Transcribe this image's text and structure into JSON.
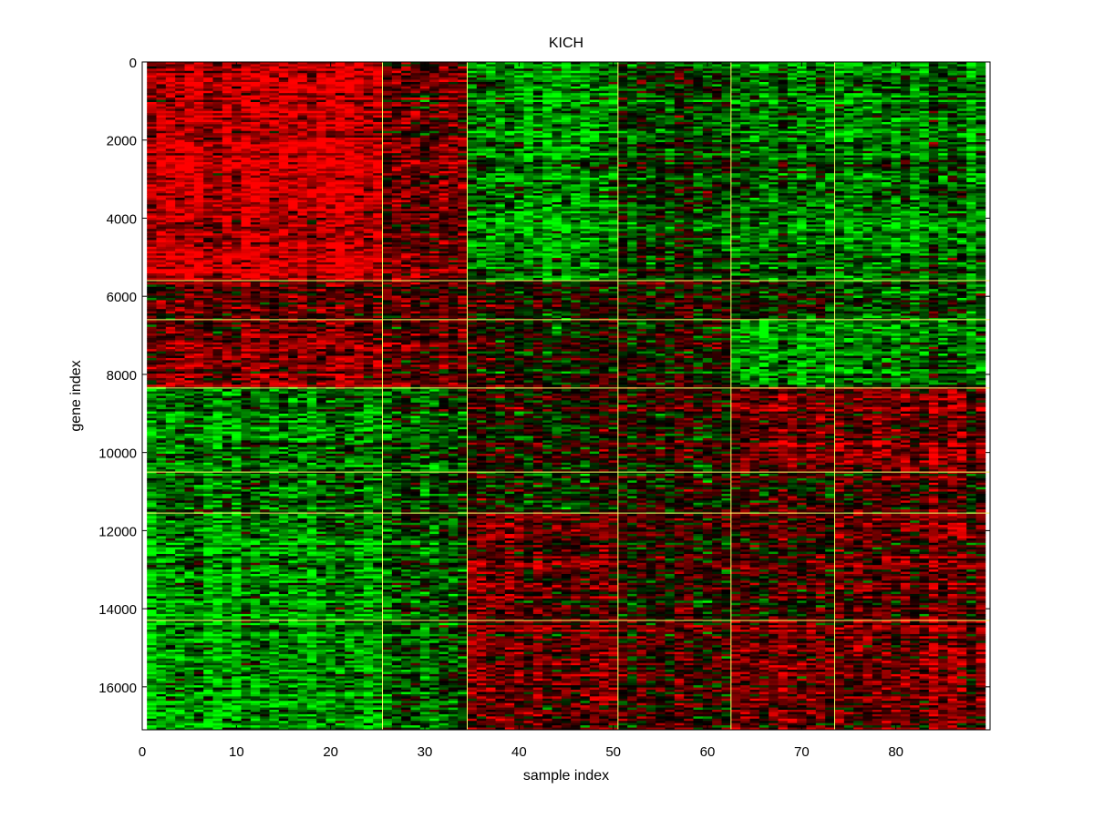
{
  "chart_data": {
    "type": "heatmap",
    "title": "KICH",
    "xlabel": "sample index",
    "ylabel": "gene index",
    "xlim": [
      0,
      90
    ],
    "ylim": [
      0,
      17100
    ],
    "y_reversed": true,
    "x_ticks": [
      0,
      10,
      20,
      30,
      40,
      50,
      60,
      70,
      80
    ],
    "y_ticks": [
      0,
      2000,
      4000,
      6000,
      8000,
      10000,
      12000,
      14000,
      16000
    ],
    "grid": false,
    "colormap": {
      "low": "#00ff00",
      "mid": "#000000",
      "high": "#ff0000"
    },
    "separator_color": "#ffff66",
    "sample_column_range": [
      0.5,
      89.5
    ],
    "sample_group_boundaries": [
      25.5,
      34.5,
      50.5,
      62.5,
      73.5
    ],
    "gene_group_boundaries": [
      5600,
      6600,
      8350,
      10500,
      11550,
      14300
    ],
    "block_tendency": {
      "description": "mean expression tendency per block (-1 = green, +1 = red), rows = gene bands, cols = sample groups",
      "gene_bands": [
        [
          0,
          5600
        ],
        [
          5600,
          6600
        ],
        [
          6600,
          8350
        ],
        [
          8350,
          10500
        ],
        [
          10500,
          11550
        ],
        [
          11550,
          14300
        ],
        [
          14300,
          17100
        ]
      ],
      "sample_groups": [
        [
          0.5,
          25.5
        ],
        [
          25.5,
          34.5
        ],
        [
          34.5,
          50.5
        ],
        [
          50.5,
          62.5
        ],
        [
          62.5,
          73.5
        ],
        [
          73.5,
          89.5
        ]
      ],
      "values": [
        [
          0.75,
          0.35,
          -0.45,
          -0.2,
          -0.35,
          -0.45
        ],
        [
          0.25,
          0.2,
          0.05,
          -0.05,
          -0.1,
          -0.35
        ],
        [
          0.45,
          0.3,
          0.1,
          0.0,
          -0.55,
          -0.45
        ],
        [
          -0.45,
          -0.3,
          0.15,
          0.1,
          0.5,
          0.45
        ],
        [
          -0.35,
          -0.25,
          0.0,
          0.0,
          0.15,
          0.2
        ],
        [
          -0.55,
          -0.3,
          0.45,
          0.1,
          0.25,
          0.35
        ],
        [
          -0.6,
          -0.35,
          0.45,
          0.15,
          0.45,
          0.4
        ]
      ]
    }
  }
}
